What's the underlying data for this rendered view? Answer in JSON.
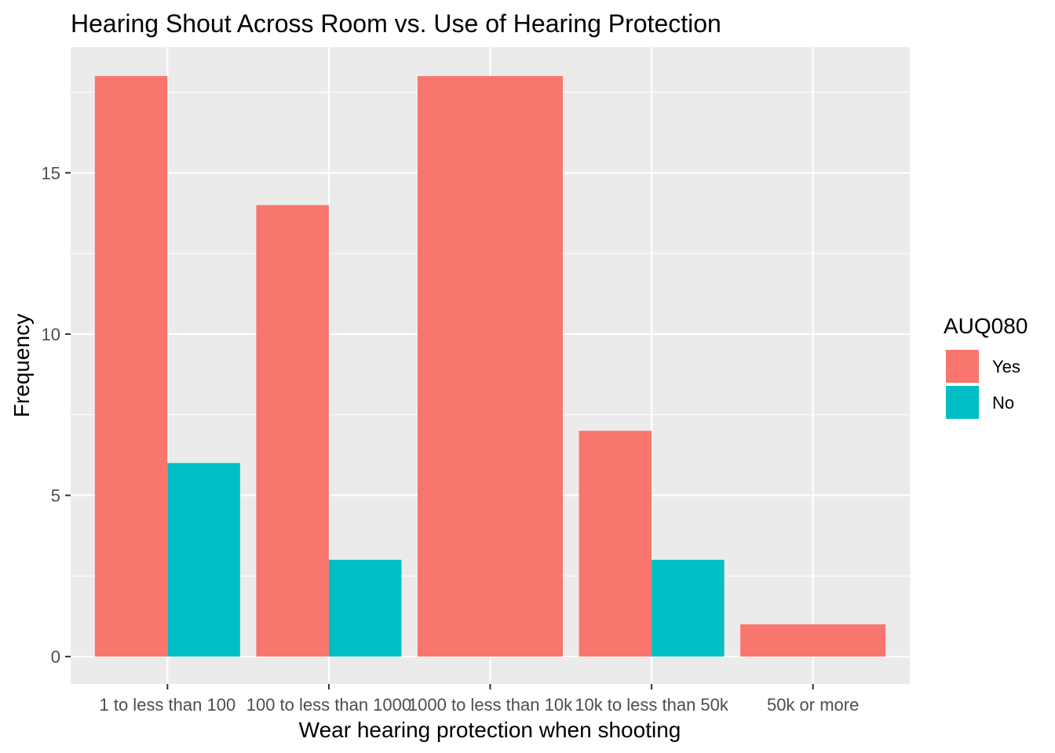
{
  "chart_data": {
    "type": "bar",
    "title": "Hearing Shout Across Room vs. Use of Hearing Protection",
    "xlabel": "Wear hearing protection when shooting",
    "ylabel": "Frequency",
    "categories": [
      "1 to less than 100",
      "100 to less than 1000",
      "1000 to less than 10k",
      "10k to less than 50k",
      "50k or more"
    ],
    "series": [
      {
        "name": "Yes",
        "color": "#F8766D",
        "values": [
          18,
          14,
          18,
          7,
          1
        ]
      },
      {
        "name": "No",
        "color": "#00BFC4",
        "values": [
          6,
          3,
          0,
          3,
          0
        ]
      }
    ],
    "yticks": [
      0,
      5,
      10,
      15
    ],
    "ylim": [
      -0.85,
      18.9
    ],
    "grid": true,
    "panel_background": "#EBEBEB",
    "legend": {
      "title": "AUQ080",
      "position": "right"
    }
  }
}
